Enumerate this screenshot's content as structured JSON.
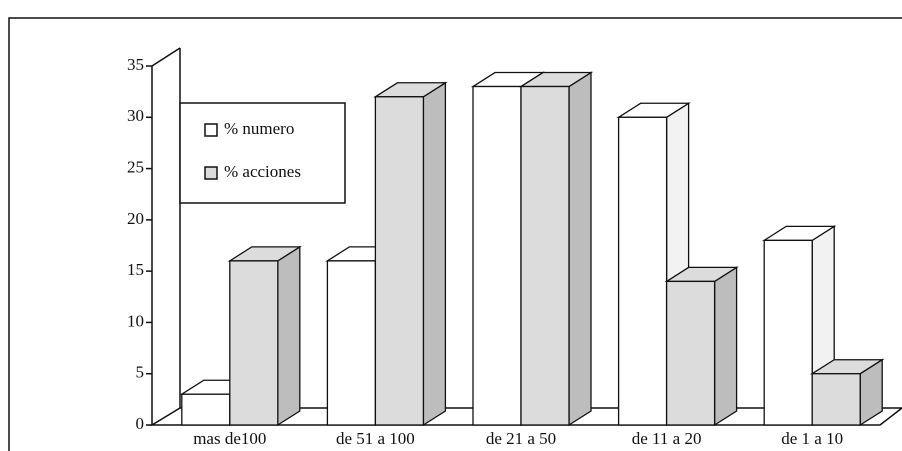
{
  "chart_data": {
    "type": "bar3d",
    "categories": [
      "mas de100",
      "de 51 a 100",
      "de 21 a 50",
      "de 11 a 20",
      "de 1 a 10"
    ],
    "series": [
      {
        "name": "% numero",
        "color": "#ffffff",
        "values": [
          3,
          16,
          33,
          30,
          18
        ]
      },
      {
        "name": "% acciones",
        "color": "#dcdcdc",
        "values": [
          16,
          32,
          33,
          14,
          5
        ]
      }
    ],
    "ylim": [
      0,
      35
    ],
    "yticks": [
      0,
      5,
      10,
      15,
      20,
      25,
      30,
      35
    ]
  }
}
